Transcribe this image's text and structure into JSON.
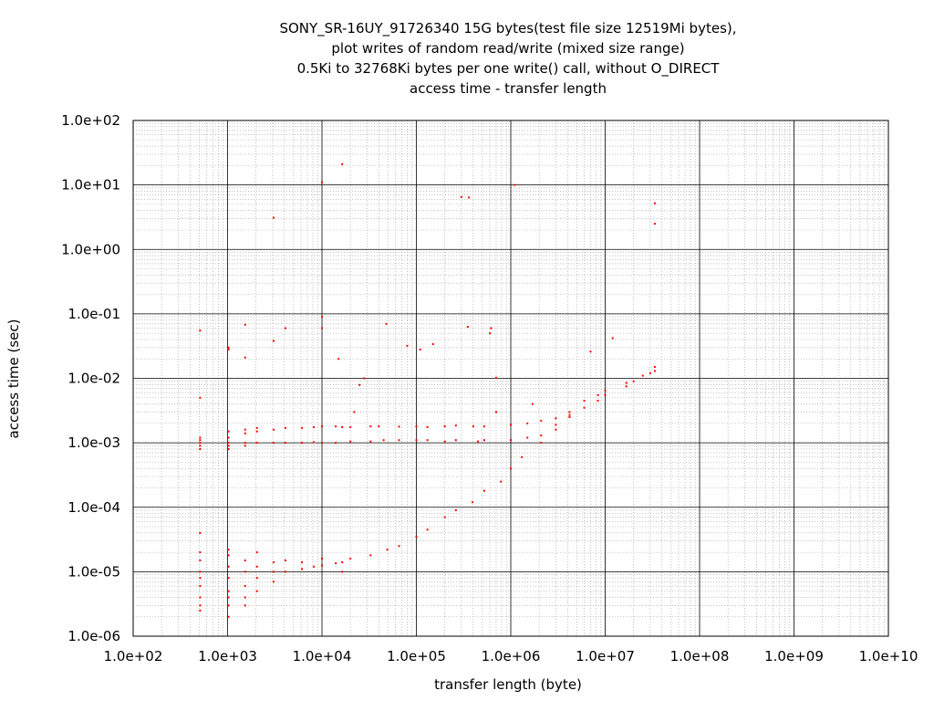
{
  "chart_data": {
    "type": "scatter",
    "title_lines": [
      "SONY_SR-16UY_91726340 15G bytes(test file size 12519Mi bytes),",
      "plot writes of random read/write (mixed size range)",
      "0.5Ki to 32768Ki bytes per one write() call, without O_DIRECT",
      "access time - transfer length"
    ],
    "xlabel": "transfer length (byte)",
    "ylabel": "access time (sec)",
    "x_scale": "log",
    "y_scale": "log",
    "xlim": [
      100,
      10000000000
    ],
    "ylim": [
      1e-06,
      100
    ],
    "x_tick_labels": [
      "1.0e+02",
      "1.0e+03",
      "1.0e+04",
      "1.0e+05",
      "1.0e+06",
      "1.0e+07",
      "1.0e+08",
      "1.0e+09",
      "1.0e+10"
    ],
    "y_tick_labels": [
      "1.0e-06",
      "1.0e-05",
      "1.0e-04",
      "1.0e-03",
      "1.0e-02",
      "1.0e-01",
      "1.0e+00",
      "1.0e+01",
      "1.0e+02"
    ],
    "grid": true,
    "marker_color": "#ff0000",
    "series": [
      {
        "points": [
          [
            512,
            0.0009
          ],
          [
            512,
            0.0011
          ],
          [
            512,
            0.001
          ],
          [
            512,
            0.0008
          ],
          [
            512,
            0.0012
          ],
          [
            512,
            0.005
          ],
          [
            512,
            0.055
          ],
          [
            512,
            4e-06
          ],
          [
            512,
            6e-06
          ],
          [
            512,
            8e-06
          ],
          [
            512,
            1e-05
          ],
          [
            512,
            1.5e-05
          ],
          [
            512,
            2e-05
          ],
          [
            512,
            3e-06
          ],
          [
            512,
            2.5e-06
          ],
          [
            512,
            4e-05
          ],
          [
            1024,
            0.0009
          ],
          [
            1024,
            0.001
          ],
          [
            1024,
            0.0012
          ],
          [
            1024,
            0.0015
          ],
          [
            1024,
            0.0008
          ],
          [
            1024,
            0.03
          ],
          [
            1024,
            0.028
          ],
          [
            1024,
            3e-06
          ],
          [
            1024,
            5e-06
          ],
          [
            1024,
            8e-06
          ],
          [
            1024,
            1.2e-05
          ],
          [
            1024,
            1.8e-05
          ],
          [
            1024,
            2.2e-05
          ],
          [
            1024,
            4e-06
          ],
          [
            1024,
            2e-06
          ],
          [
            1536,
            0.001
          ],
          [
            1536,
            0.0014
          ],
          [
            1536,
            0.0016
          ],
          [
            1536,
            0.0009
          ],
          [
            1536,
            0.068
          ],
          [
            1536,
            0.021
          ],
          [
            1536,
            6e-06
          ],
          [
            1536,
            1e-05
          ],
          [
            1536,
            1.5e-05
          ],
          [
            1536,
            4e-06
          ],
          [
            1536,
            3e-06
          ],
          [
            2048,
            0.001
          ],
          [
            2048,
            0.0017
          ],
          [
            2048,
            0.0015
          ],
          [
            2048,
            8e-06
          ],
          [
            2048,
            1.2e-05
          ],
          [
            2048,
            5e-06
          ],
          [
            2048,
            2e-05
          ],
          [
            3072,
            0.001
          ],
          [
            3072,
            0.0016
          ],
          [
            3072,
            0.038
          ],
          [
            3072,
            3.1
          ],
          [
            3072,
            1e-05
          ],
          [
            3072,
            1.4e-05
          ],
          [
            3072,
            7e-06
          ],
          [
            4096,
            0.001
          ],
          [
            4096,
            0.0017
          ],
          [
            4096,
            0.06
          ],
          [
            4096,
            1.5e-05
          ],
          [
            4096,
            1e-05
          ],
          [
            6144,
            0.001
          ],
          [
            6144,
            0.0017
          ],
          [
            6144,
            1.1e-05
          ],
          [
            6144,
            1.4e-05
          ],
          [
            8192,
            0.00102
          ],
          [
            8192,
            0.00175
          ],
          [
            8192,
            1.2e-05
          ],
          [
            10000,
            0.001
          ],
          [
            10000,
            0.0018
          ],
          [
            10000,
            0.06
          ],
          [
            10000,
            0.09
          ],
          [
            10000,
            11.0
          ],
          [
            10000,
            1.25e-05
          ],
          [
            10000,
            1.6e-05
          ],
          [
            14000,
            0.001
          ],
          [
            14000,
            0.0018
          ],
          [
            14000,
            1.35e-05
          ],
          [
            15000,
            0.02
          ],
          [
            16384,
            21.0
          ],
          [
            16384,
            0.00175
          ],
          [
            16384,
            1.4e-05
          ],
          [
            16384,
            1e-05
          ],
          [
            20000,
            0.00105
          ],
          [
            20000,
            0.00175
          ],
          [
            20000,
            1.6e-05
          ],
          [
            22000,
            0.003
          ],
          [
            25000,
            0.0079
          ],
          [
            28000,
            0.01
          ],
          [
            32768,
            0.00105
          ],
          [
            32768,
            0.0018
          ],
          [
            32768,
            1.8e-05
          ],
          [
            40000,
            0.0018
          ],
          [
            45000,
            0.0011
          ],
          [
            48000,
            0.07
          ],
          [
            49152,
            2.2e-05
          ],
          [
            65536,
            0.0011
          ],
          [
            65536,
            0.00178
          ],
          [
            65536,
            2.5e-05
          ],
          [
            80000,
            0.032
          ],
          [
            100000,
            0.0011
          ],
          [
            100000,
            0.0018
          ],
          [
            100000,
            3.5e-05
          ],
          [
            110000,
            0.028
          ],
          [
            131072,
            0.0011
          ],
          [
            131072,
            0.00175
          ],
          [
            131072,
            4.5e-05
          ],
          [
            150000,
            0.034
          ],
          [
            200000,
            0.00105
          ],
          [
            200000,
            0.0018
          ],
          [
            200000,
            7e-05
          ],
          [
            262144,
            0.0011
          ],
          [
            262144,
            0.00185
          ],
          [
            262144,
            9e-05
          ],
          [
            300000,
            6.5
          ],
          [
            360000,
            6.4
          ],
          [
            350000,
            0.063
          ],
          [
            393216,
            0.00012
          ],
          [
            400000,
            0.0018
          ],
          [
            450000,
            0.00105
          ],
          [
            524288,
            0.0011
          ],
          [
            524288,
            0.0018
          ],
          [
            524288,
            0.00018
          ],
          [
            600000,
            0.05
          ],
          [
            620000,
            0.06
          ],
          [
            700000,
            0.003
          ],
          [
            700000,
            0.0102
          ],
          [
            786432,
            0.00025
          ],
          [
            1000000,
            0.0011
          ],
          [
            1000000,
            0.0019
          ],
          [
            1000000,
            0.0004
          ],
          [
            1100000,
            10.0
          ],
          [
            1310720,
            0.0006
          ],
          [
            1500000,
            0.0012
          ],
          [
            1500000,
            0.002
          ],
          [
            1700000,
            0.004
          ],
          [
            2097152,
            0.0013
          ],
          [
            2097152,
            0.0022
          ],
          [
            2097152,
            0.001
          ],
          [
            3000000,
            0.0016
          ],
          [
            3000000,
            0.0024
          ],
          [
            3000000,
            0.0019
          ],
          [
            4194304,
            0.0025
          ],
          [
            4194304,
            0.003
          ],
          [
            4194304,
            0.0027
          ],
          [
            6000000,
            0.0035
          ],
          [
            6000000,
            0.0045
          ],
          [
            7000000,
            0.026
          ],
          [
            8388608,
            0.0045
          ],
          [
            8388608,
            0.0055
          ],
          [
            10000000,
            0.0055
          ],
          [
            10000000,
            0.0065
          ],
          [
            12000000,
            0.042
          ],
          [
            16777216,
            0.0075
          ],
          [
            16777216,
            0.0085
          ],
          [
            20000000,
            0.009
          ],
          [
            25000000,
            0.011
          ],
          [
            30000000,
            0.012
          ],
          [
            33554432,
            0.013
          ],
          [
            33554432,
            0.015
          ],
          [
            33554432,
            2.5
          ],
          [
            33554432,
            5.2
          ]
        ]
      }
    ]
  }
}
